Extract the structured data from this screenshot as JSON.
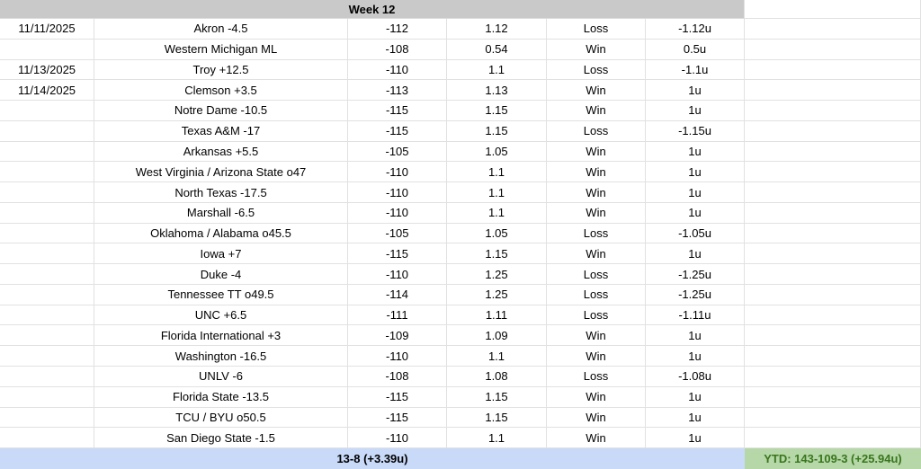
{
  "header": {
    "title": "Week 12"
  },
  "columns": [
    "date",
    "bet",
    "odds",
    "risk",
    "result",
    "units",
    "blank"
  ],
  "rows": [
    {
      "date": "11/11/2025",
      "bet": "Akron -4.5",
      "odds": "-112",
      "risk": "1.12",
      "result": "Loss",
      "units": "-1.12u"
    },
    {
      "date": "",
      "bet": "Western Michigan ML",
      "odds": "-108",
      "risk": "0.54",
      "result": "Win",
      "units": "0.5u"
    },
    {
      "date": "11/13/2025",
      "bet": "Troy +12.5",
      "odds": "-110",
      "risk": "1.1",
      "result": "Loss",
      "units": "-1.1u"
    },
    {
      "date": "11/14/2025",
      "bet": "Clemson +3.5",
      "odds": "-113",
      "risk": "1.13",
      "result": "Win",
      "units": "1u"
    },
    {
      "date": "",
      "bet": "Notre Dame -10.5",
      "odds": "-115",
      "risk": "1.15",
      "result": "Win",
      "units": "1u"
    },
    {
      "date": "",
      "bet": "Texas A&M -17",
      "odds": "-115",
      "risk": "1.15",
      "result": "Loss",
      "units": "-1.15u"
    },
    {
      "date": "",
      "bet": "Arkansas +5.5",
      "odds": "-105",
      "risk": "1.05",
      "result": "Win",
      "units": "1u"
    },
    {
      "date": "",
      "bet": "West Virginia / Arizona State o47",
      "odds": "-110",
      "risk": "1.1",
      "result": "Win",
      "units": "1u"
    },
    {
      "date": "",
      "bet": "North Texas -17.5",
      "odds": "-110",
      "risk": "1.1",
      "result": "Win",
      "units": "1u"
    },
    {
      "date": "",
      "bet": "Marshall -6.5",
      "odds": "-110",
      "risk": "1.1",
      "result": "Win",
      "units": "1u"
    },
    {
      "date": "",
      "bet": "Oklahoma / Alabama o45.5",
      "odds": "-105",
      "risk": "1.05",
      "result": "Loss",
      "units": "-1.05u"
    },
    {
      "date": "",
      "bet": "Iowa +7",
      "odds": "-115",
      "risk": "1.15",
      "result": "Win",
      "units": "1u"
    },
    {
      "date": "",
      "bet": "Duke -4",
      "odds": "-110",
      "risk": "1.25",
      "result": "Loss",
      "units": "-1.25u"
    },
    {
      "date": "",
      "bet": "Tennessee TT o49.5",
      "odds": "-114",
      "risk": "1.25",
      "result": "Loss",
      "units": "-1.25u"
    },
    {
      "date": "",
      "bet": "UNC +6.5",
      "odds": "-111",
      "risk": "1.11",
      "result": "Loss",
      "units": "-1.11u"
    },
    {
      "date": "",
      "bet": "Florida International +3",
      "odds": "-109",
      "risk": "1.09",
      "result": "Win",
      "units": "1u"
    },
    {
      "date": "",
      "bet": "Washington -16.5",
      "odds": "-110",
      "risk": "1.1",
      "result": "Win",
      "units": "1u"
    },
    {
      "date": "",
      "bet": "UNLV -6",
      "odds": "-108",
      "risk": "1.08",
      "result": "Loss",
      "units": "-1.08u"
    },
    {
      "date": "",
      "bet": "Florida State -13.5",
      "odds": "-115",
      "risk": "1.15",
      "result": "Win",
      "units": "1u"
    },
    {
      "date": "",
      "bet": "TCU / BYU o50.5",
      "odds": "-115",
      "risk": "1.15",
      "result": "Win",
      "units": "1u"
    },
    {
      "date": "",
      "bet": "San Diego State -1.5",
      "odds": "-110",
      "risk": "1.1",
      "result": "Win",
      "units": "1u"
    }
  ],
  "footer": {
    "week_record": "13-8 (+3.39u)",
    "ytd_record": "YTD: 143-109-3 (+25.94u)"
  },
  "colors": {
    "header_bg": "#c9c9c9",
    "week_record_bg": "#c9daf8",
    "ytd_bg": "#b6d7a8",
    "ytd_text": "#38761d",
    "gridline": "#e1e1e1",
    "text": "#000000"
  }
}
